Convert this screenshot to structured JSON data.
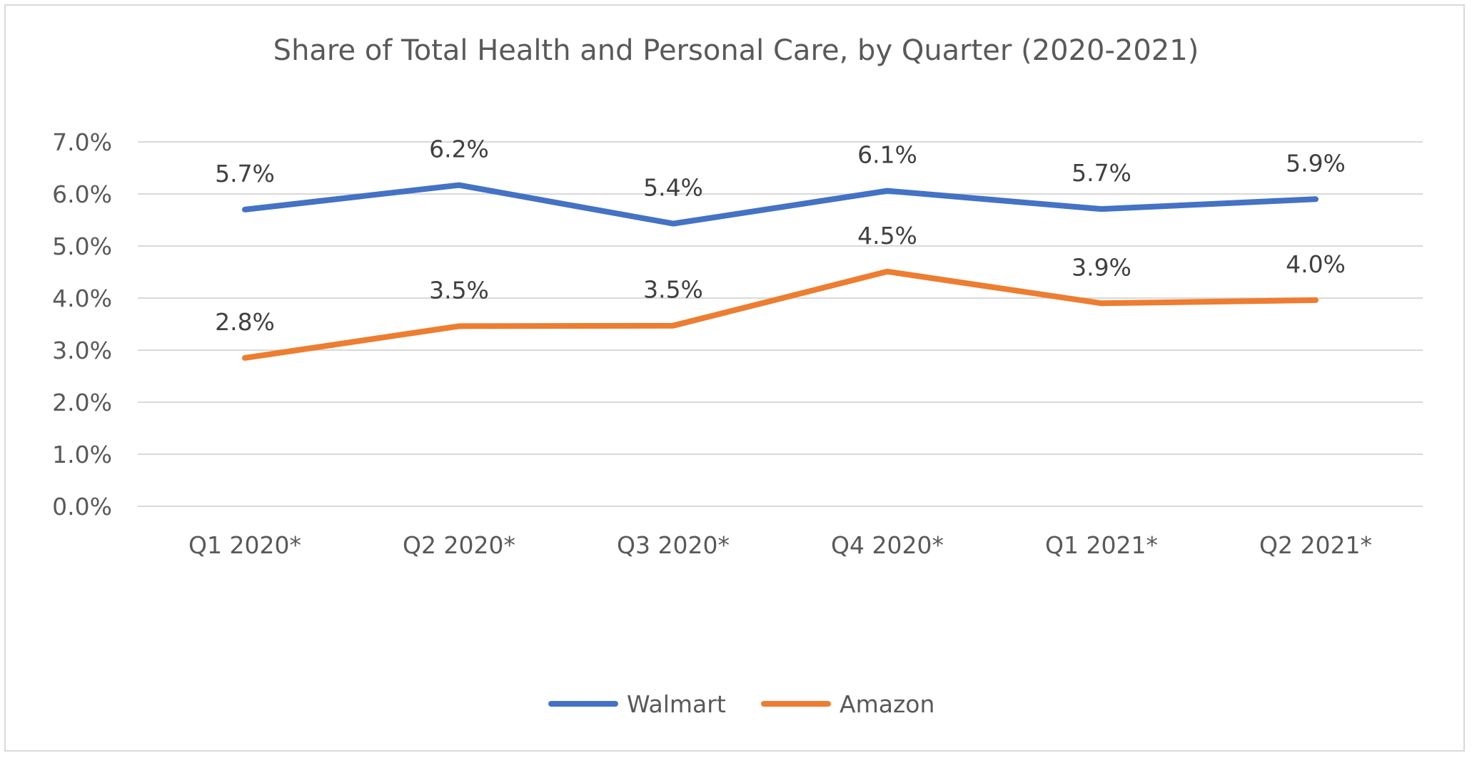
{
  "chart_data": {
    "type": "line",
    "title": "Share of Total Health and Personal Care, by Quarter (2020-2021)",
    "xlabel": "",
    "ylabel": "",
    "categories": [
      "Q1 2020*",
      "Q2 2020*",
      "Q3 2020*",
      "Q4 2020*",
      "Q1 2021*",
      "Q2 2021*"
    ],
    "ylim": [
      0,
      7
    ],
    "yticks": [
      "0.0%",
      "1.0%",
      "2.0%",
      "3.0%",
      "4.0%",
      "5.0%",
      "6.0%",
      "7.0%"
    ],
    "grid": true,
    "legend_position": "bottom",
    "series": [
      {
        "name": "Walmart",
        "color": "#4472C4",
        "values": [
          5.7,
          6.17,
          5.43,
          6.06,
          5.71,
          5.9
        ],
        "labels": [
          "5.7%",
          "6.2%",
          "5.4%",
          "6.1%",
          "5.7%",
          "5.9%"
        ]
      },
      {
        "name": "Amazon",
        "color": "#ED7D31",
        "values": [
          2.85,
          3.46,
          3.47,
          4.51,
          3.9,
          3.96
        ],
        "labels": [
          "2.8%",
          "3.5%",
          "3.5%",
          "4.5%",
          "3.9%",
          "4.0%"
        ]
      }
    ]
  }
}
